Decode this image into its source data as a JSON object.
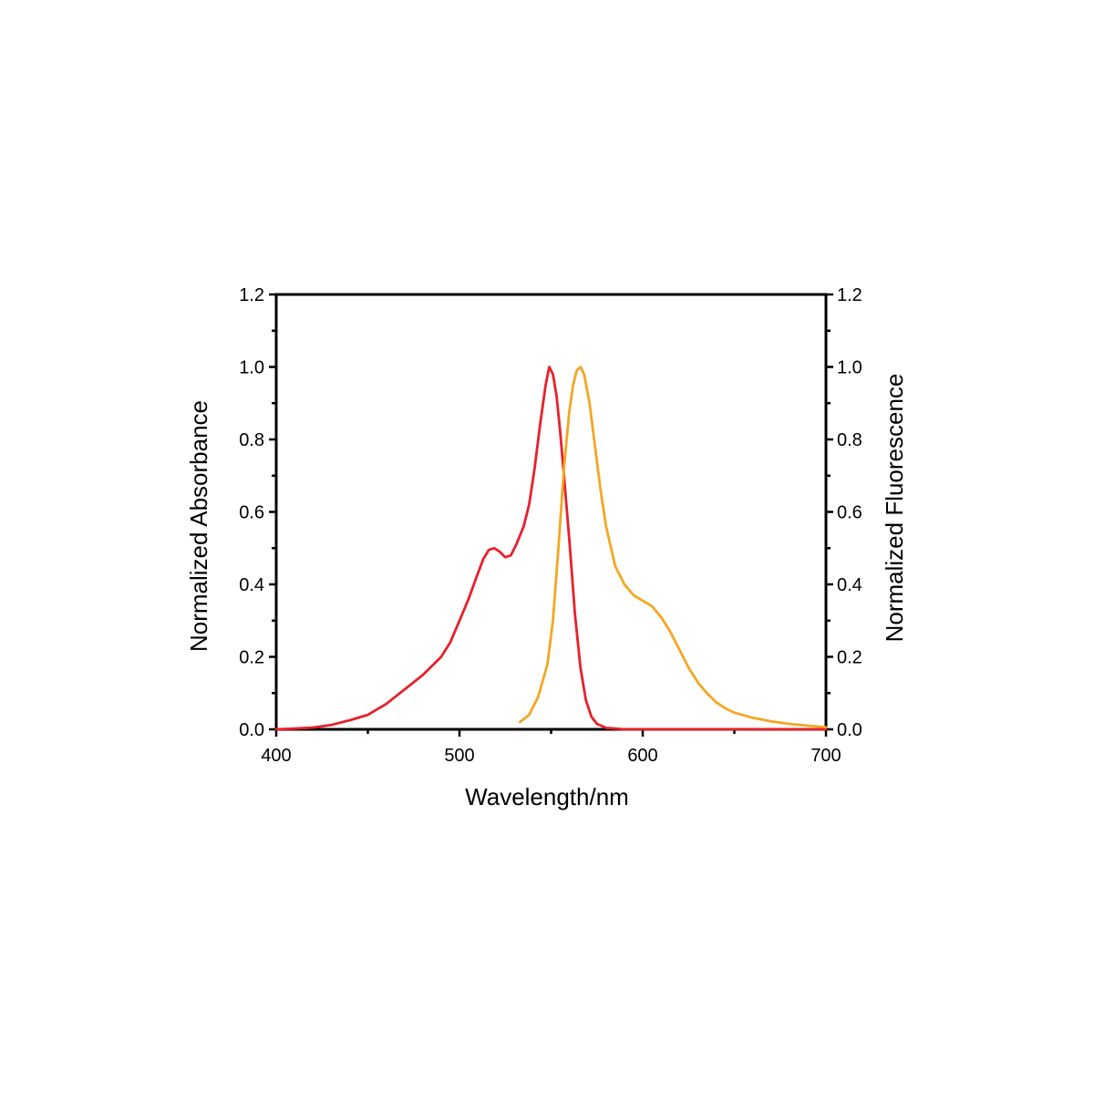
{
  "chart_data": {
    "type": "line",
    "xlabel": "Wavelength/nm",
    "ylabel_left": "Normalized Absorbance",
    "ylabel_right": "Normalized Fluorescence",
    "xlim": [
      400,
      700
    ],
    "ylim": [
      0.0,
      1.2
    ],
    "x_ticks": [
      "400",
      "500",
      "600",
      "700"
    ],
    "y_ticks": [
      "0.0",
      "0.2",
      "0.4",
      "0.6",
      "0.8",
      "1.0",
      "1.2"
    ],
    "grid": false,
    "legend": "none",
    "series": [
      {
        "axis": "left",
        "color": "#e8202a",
        "x": [
          400,
          410,
          420,
          430,
          440,
          450,
          460,
          470,
          480,
          490,
          495,
          500,
          505,
          510,
          513,
          516,
          519,
          522,
          525,
          528,
          531,
          535,
          538,
          541,
          544,
          547,
          549,
          551,
          553,
          555,
          557,
          560,
          563,
          566,
          569,
          572,
          575,
          580,
          585,
          590,
          600,
          620,
          650,
          700
        ],
        "y": [
          0.0,
          0.002,
          0.005,
          0.012,
          0.025,
          0.04,
          0.07,
          0.11,
          0.15,
          0.2,
          0.24,
          0.3,
          0.36,
          0.43,
          0.47,
          0.495,
          0.5,
          0.49,
          0.475,
          0.48,
          0.51,
          0.56,
          0.62,
          0.72,
          0.84,
          0.95,
          1.0,
          0.98,
          0.92,
          0.82,
          0.7,
          0.52,
          0.32,
          0.17,
          0.08,
          0.035,
          0.015,
          0.004,
          0.002,
          0.0,
          0.0,
          0.0,
          0.0,
          0.0
        ]
      },
      {
        "axis": "right",
        "color": "#f5a623",
        "x": [
          533,
          538,
          543,
          548,
          551,
          554,
          557,
          560,
          562,
          564,
          566,
          568,
          571,
          574,
          577,
          580,
          585,
          590,
          595,
          600,
          605,
          610,
          615,
          620,
          625,
          630,
          635,
          640,
          645,
          650,
          660,
          670,
          680,
          690,
          700
        ],
        "y": [
          0.02,
          0.04,
          0.09,
          0.18,
          0.3,
          0.5,
          0.72,
          0.88,
          0.95,
          0.99,
          1.0,
          0.98,
          0.9,
          0.78,
          0.66,
          0.56,
          0.45,
          0.4,
          0.37,
          0.355,
          0.34,
          0.31,
          0.27,
          0.22,
          0.17,
          0.13,
          0.1,
          0.075,
          0.058,
          0.046,
          0.032,
          0.022,
          0.015,
          0.01,
          0.006
        ]
      }
    ]
  }
}
